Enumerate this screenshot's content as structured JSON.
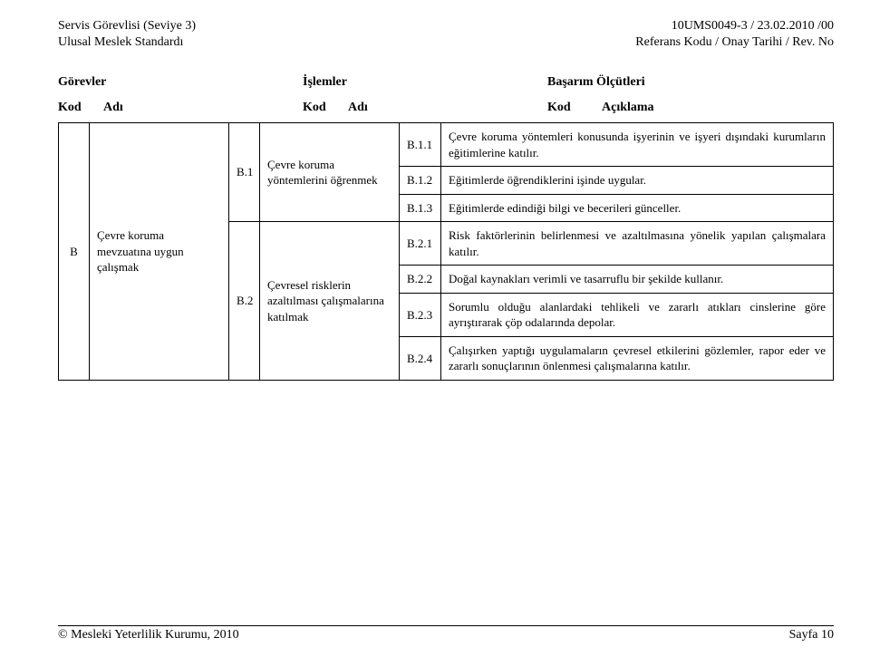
{
  "header": {
    "left_line1": "Servis Görevlisi (Seviye 3)",
    "left_line2": "Ulusal Meslek Standardı",
    "right_line1": "10UMS0049-3 / 23.02.2010  /00",
    "right_line2": "Referans Kodu / Onay Tarihi / Rev. No"
  },
  "section_headings": {
    "gorevler": "Görevler",
    "islemler": "İşlemler",
    "basarim": "Başarım Ölçütleri"
  },
  "sub_headings": {
    "kod1": "Kod",
    "adi1": "Adı",
    "kod2": "Kod",
    "adi2": "Adı",
    "kod3": "Kod",
    "aciklama": "Açıklama"
  },
  "gorev": {
    "kod": "B",
    "adi": "Çevre koruma mevzuatına uygun çalışmak"
  },
  "islemler": [
    {
      "kod": "B.1",
      "adi": "Çevre koruma yöntemlerini öğrenmek"
    },
    {
      "kod": "B.2",
      "adi": "Çevresel risklerin azaltılması çalışmalarına katılmak"
    }
  ],
  "olcutler": {
    "b1": [
      {
        "kod": "B.1.1",
        "metin": "Çevre koruma yöntemleri konusunda işyerinin ve işyeri dışındaki kurumların eğitimlerine katılır."
      },
      {
        "kod": "B.1.2",
        "metin": "Eğitimlerde öğrendiklerini işinde uygular."
      },
      {
        "kod": "B.1.3",
        "metin": "Eğitimlerde edindiği bilgi ve becerileri günceller."
      }
    ],
    "b2": [
      {
        "kod": "B.2.1",
        "metin": "Risk faktörlerinin belirlenmesi ve azaltılmasına yönelik yapılan çalışmalara katılır."
      },
      {
        "kod": "B.2.2",
        "metin": "Doğal kaynakları verimli ve tasarruflu bir şekilde kullanır."
      },
      {
        "kod": "B.2.3",
        "metin": "Sorumlu olduğu alanlardaki tehlikeli ve zararlı atıkları cinslerine göre ayrıştırarak çöp odalarında depolar."
      },
      {
        "kod": "B.2.4",
        "metin": "Çalışırken yaptığı uygulamaların çevresel etkilerini gözlemler, rapor eder ve zararlı sonuçlarının önlenmesi çalışmalarına katılır."
      }
    ]
  },
  "footer": {
    "left": "© Mesleki Yeterlilik Kurumu, 2010",
    "right": "Sayfa 10"
  }
}
